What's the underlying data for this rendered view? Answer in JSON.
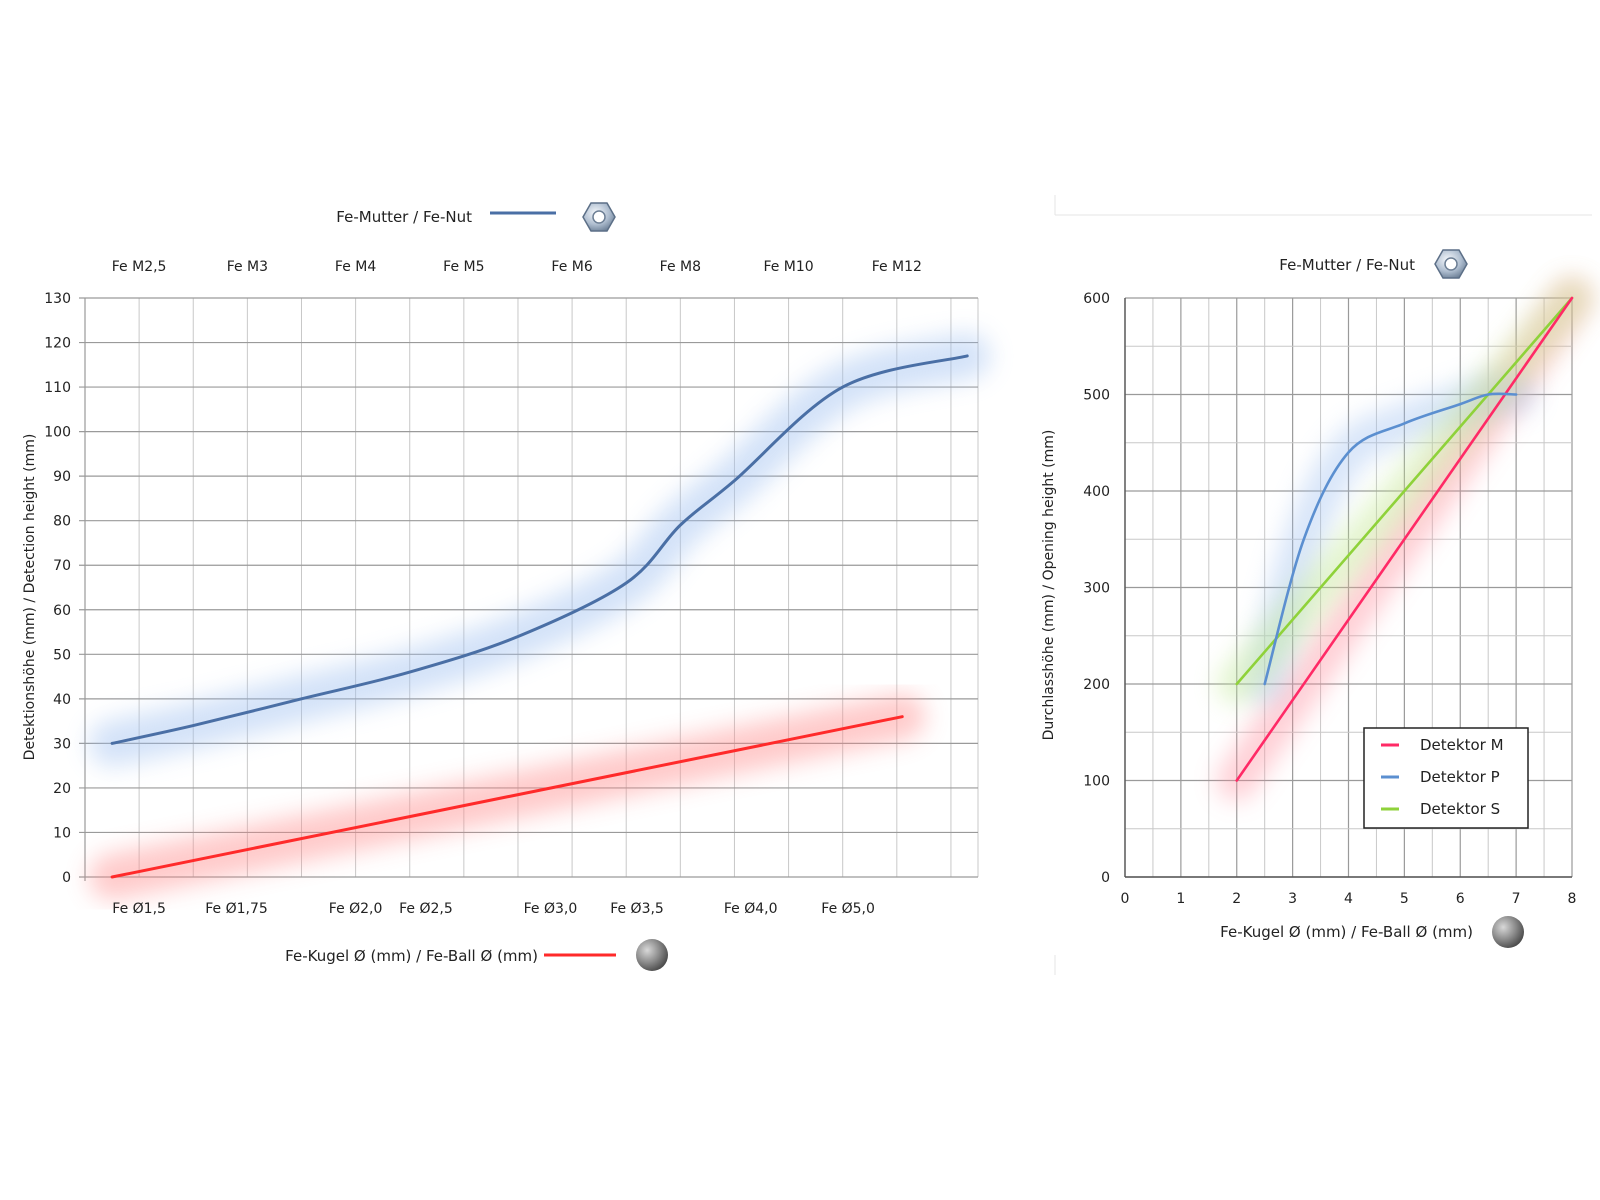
{
  "colors": {
    "nut_line": "#4a6fa5",
    "ball_line": "#ff2a2a",
    "detector_m": "#ff2a66",
    "detector_p": "#5b8fd0",
    "detector_s": "#8fd23a"
  },
  "icons": {
    "nut": "hex-nut-icon",
    "ball": "steel-ball-icon"
  },
  "chart_data": [
    {
      "type": "line",
      "top_legend": "Fe-Mutter / Fe-Nut",
      "bottom_legend": "Fe-Kugel Ø (mm) / Fe-Ball Ø (mm)",
      "ylabel": "Detektionshöhe (mm) / Detection height (mm)",
      "ylim": [
        0,
        130
      ],
      "yticks": [
        "0",
        "10",
        "20",
        "30",
        "40",
        "50",
        "60",
        "70",
        "80",
        "90",
        "100",
        "110",
        "120",
        "130"
      ],
      "top_categories": [
        "Fe M2,5",
        "Fe M3",
        "Fe M4",
        "Fe M5",
        "Fe M6",
        "Fe M8",
        "Fe M10",
        "Fe M12"
      ],
      "bottom_categories": [
        "Fe Ø1,5",
        "Fe Ø1,75",
        "Fe Ø2,0",
        "Fe Ø2,5",
        "Fe Ø3,0",
        "Fe Ø3,5",
        "Fe Ø4,0",
        "Fe Ø5,0"
      ],
      "grid": true,
      "series": [
        {
          "name": "Fe-Mutter / Fe-Nut",
          "x": [
            0.5,
            2,
            4,
            6,
            8,
            10,
            11,
            12,
            14,
            16.3
          ],
          "values": [
            30,
            34,
            40,
            46,
            54,
            66,
            79,
            89,
            110,
            117
          ]
        },
        {
          "name": "Fe-Kugel Ø (mm) / Fe-Ball Ø (mm)",
          "x": [
            0.5,
            15.1
          ],
          "values": [
            0,
            36
          ]
        }
      ]
    },
    {
      "type": "line",
      "top_legend": "Fe-Mutter / Fe-Nut",
      "xlabel": "Fe-Kugel Ø (mm) / Fe-Ball Ø (mm)",
      "ylabel": "Durchlasshöhe (mm) / Opening height (mm)",
      "xlim": [
        0,
        8
      ],
      "ylim": [
        0,
        600
      ],
      "xticks": [
        "0",
        "1",
        "2",
        "3",
        "4",
        "5",
        "6",
        "7",
        "8"
      ],
      "yticks": [
        "0",
        "100",
        "200",
        "300",
        "400",
        "500",
        "600"
      ],
      "grid": true,
      "legend": "bottom-right",
      "series": [
        {
          "name": "Detektor M",
          "x": [
            2,
            8
          ],
          "values": [
            100,
            600
          ]
        },
        {
          "name": "Detektor P",
          "x": [
            2.5,
            3.2,
            4,
            5,
            6,
            6.5,
            7
          ],
          "values": [
            200,
            350,
            440,
            470,
            490,
            500,
            500
          ]
        },
        {
          "name": "Detektor S",
          "x": [
            2,
            8
          ],
          "values": [
            200,
            600
          ]
        }
      ]
    }
  ]
}
